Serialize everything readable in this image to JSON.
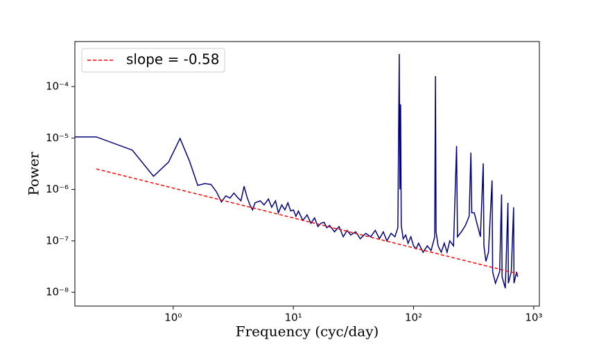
{
  "chart_data": {
    "type": "line",
    "xlabel": "Frequency (cyc/day)",
    "ylabel": "Power",
    "xscale": "log",
    "yscale": "log",
    "xlim": [
      0.152,
      1114
    ],
    "ylim": [
      5.4e-09,
      0.00075
    ],
    "xticks": [
      {
        "value": 1,
        "label": "10⁰"
      },
      {
        "value": 10,
        "label": "10¹"
      },
      {
        "value": 100,
        "label": "10²"
      },
      {
        "value": 1000,
        "label": "10³"
      }
    ],
    "yticks": [
      {
        "value": 1e-08,
        "label": "10⁻⁸"
      },
      {
        "value": 1e-07,
        "label": "10⁻⁷"
      },
      {
        "value": 1e-06,
        "label": "10⁻⁶"
      },
      {
        "value": 1e-05,
        "label": "10⁻⁵"
      },
      {
        "value": 0.0001,
        "label": "10⁻⁴"
      }
    ],
    "legend": "upper left",
    "series": [
      {
        "color": "#00007f",
        "style": "solid",
        "x": [
          0.152,
          0.229,
          0.457,
          0.686,
          0.915,
          1.14,
          1.37,
          1.6,
          1.83,
          2.06,
          2.29,
          2.52,
          2.74,
          2.97,
          3.2,
          3.43,
          3.66,
          3.89,
          4.12,
          4.35,
          4.57,
          4.8,
          5.3,
          5.7,
          6.2,
          6.6,
          7.1,
          7.5,
          8,
          8.5,
          9,
          9.5,
          10,
          10.5,
          11,
          12,
          13,
          14,
          15,
          16,
          17,
          18,
          19,
          20,
          22,
          24,
          26,
          28,
          30,
          33,
          36,
          40,
          44,
          48,
          52,
          56,
          60,
          65,
          70,
          74,
          76,
          77,
          78,
          79,
          82,
          86,
          90,
          95,
          100,
          105,
          110,
          120,
          130,
          140,
          150,
          152,
          154,
          160,
          170,
          180,
          190,
          200,
          215,
          228,
          232,
          250,
          270,
          290,
          300,
          305,
          320,
          340,
          360,
          380,
          385,
          400,
          420,
          450,
          455,
          480,
          520,
          540,
          545,
          580,
          610,
          615,
          650,
          680,
          685,
          720,
          735
        ],
        "values": [
          1.05e-05,
          1.05e-05,
          5.8e-06,
          1.8e-06,
          3.4e-06,
          9.8e-06,
          3.5e-06,
          1.2e-06,
          1.3e-06,
          1.25e-06,
          9e-07,
          5.7e-07,
          7.5e-07,
          6.8e-07,
          8.5e-07,
          7e-07,
          6e-07,
          1.15e-06,
          7e-07,
          5e-07,
          4e-07,
          5.5e-07,
          6e-07,
          5e-07,
          6.5e-07,
          4.5e-07,
          6e-07,
          3.5e-07,
          5e-07,
          4e-07,
          5.5e-07,
          3.8e-07,
          4e-07,
          3e-07,
          3.8e-07,
          2.5e-07,
          3.2e-07,
          2.2e-07,
          2.8e-07,
          1.9e-07,
          2.2e-07,
          2.3e-07,
          1.8e-07,
          2e-07,
          1.5e-07,
          1.9e-07,
          1.2e-07,
          1.6e-07,
          1.3e-07,
          1.5e-07,
          1.1e-07,
          1.4e-07,
          1.2e-07,
          1.6e-07,
          1.1e-07,
          1.5e-07,
          1e-07,
          1.4e-07,
          1.2e-07,
          1.8e-07,
          0.00043,
          1e-06,
          4.5e-05,
          2e-07,
          1.1e-07,
          1.3e-07,
          9e-08,
          1.2e-07,
          8e-08,
          7e-08,
          9e-08,
          6e-08,
          8e-08,
          6.5e-08,
          1.2e-07,
          0.00016,
          1.5e-07,
          8e-08,
          6e-08,
          9e-08,
          6e-08,
          1e-07,
          8e-08,
          7e-06,
          1.2e-07,
          1.5e-07,
          2e-07,
          3e-07,
          5.2e-06,
          3.5e-07,
          3.5e-07,
          2e-07,
          1.2e-07,
          3.2e-06,
          8e-08,
          4e-08,
          6e-08,
          1.5e-06,
          2.5e-08,
          1.5e-08,
          2.5e-08,
          8e-07,
          2e-08,
          1.2e-08,
          5.5e-07,
          1.5e-08,
          2.5e-08,
          4.5e-07,
          1.5e-08,
          2.5e-08,
          2e-08
        ]
      },
      {
        "name": "slope = -0.58",
        "color": "#ff0000",
        "style": "dashed",
        "x": [
          0.229,
          735
        ],
        "values": [
          2.5e-06,
          2.3e-08
        ]
      }
    ]
  }
}
